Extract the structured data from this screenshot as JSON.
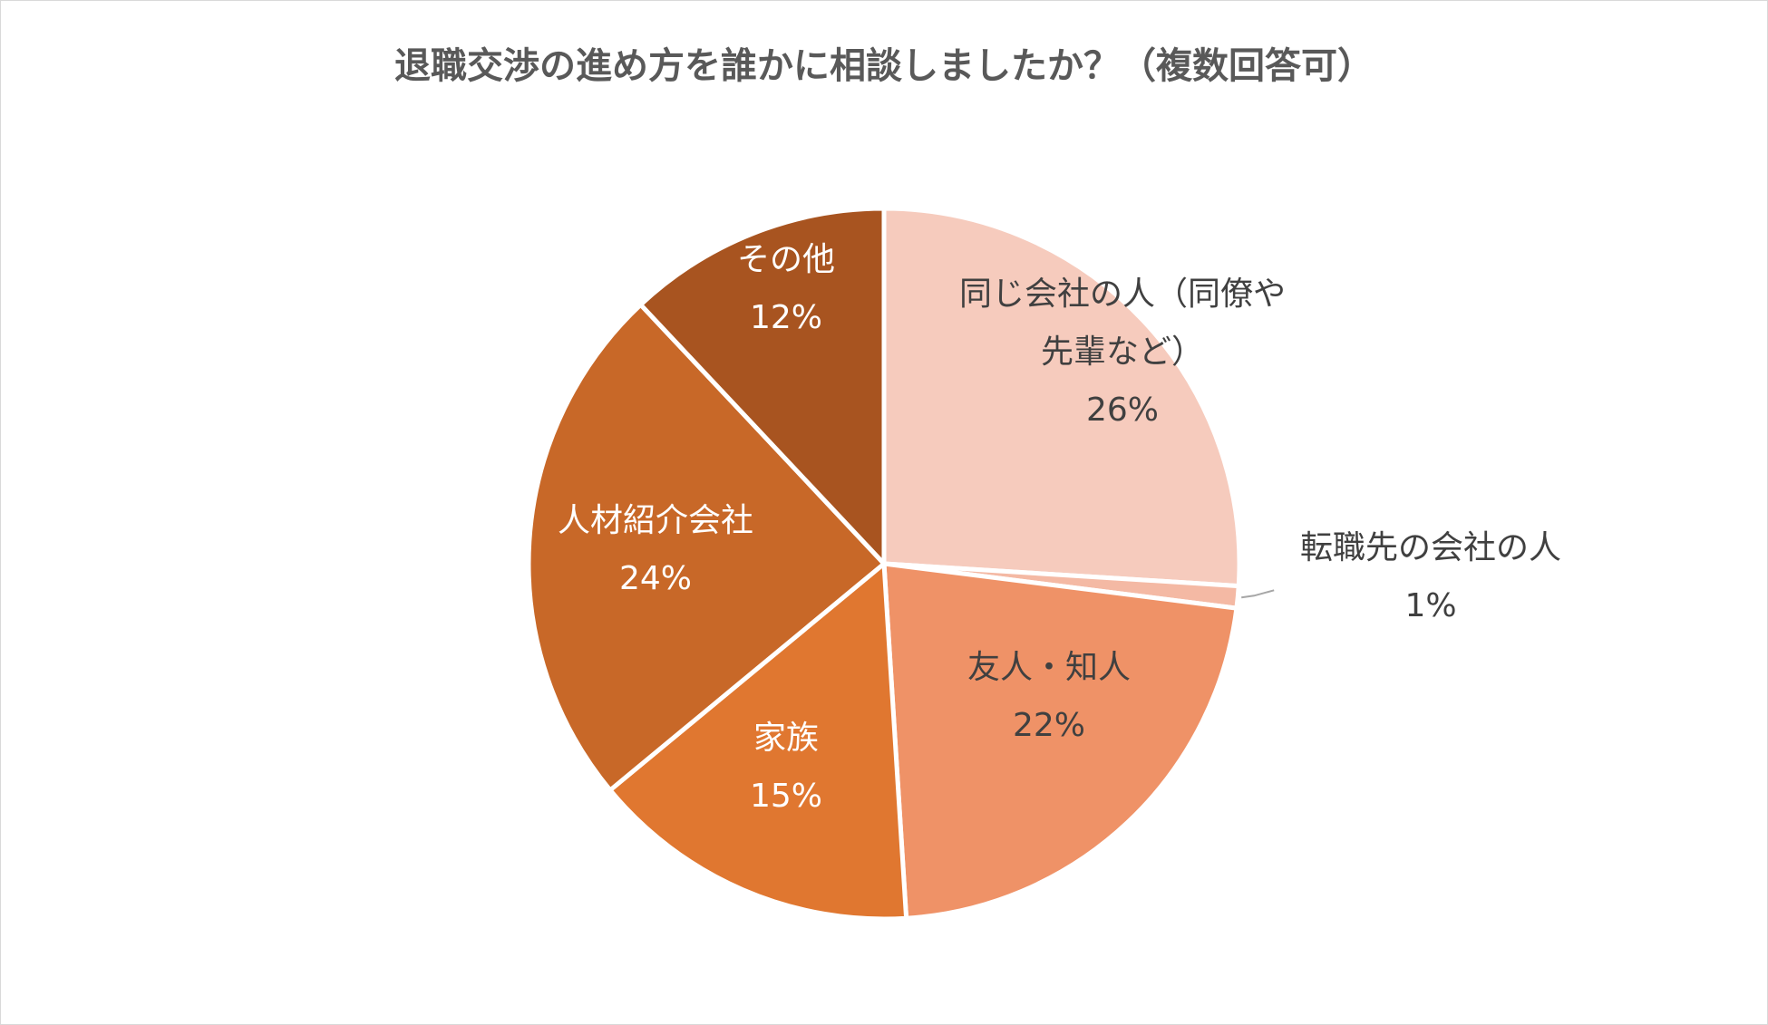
{
  "chart_data": {
    "type": "pie",
    "title": "退職交渉の進め方を誰かに相談しましたか？（複数回答可）",
    "categories": [
      "同じ会社の人（同僚や先輩など）",
      "転職先の会社の人",
      "友人・知人",
      "家族",
      "人材紹介会社",
      "その他"
    ],
    "label_lines": [
      [
        "同じ会社の人（同僚や",
        "先輩など）"
      ],
      [
        "転職先の会社の人"
      ],
      [
        "友人・知人"
      ],
      [
        "家族"
      ],
      [
        "人材紹介会社"
      ],
      [
        "その他"
      ]
    ],
    "values": [
      26,
      1,
      22,
      15,
      24,
      12
    ],
    "value_labels": [
      "26%",
      "1%",
      "22%",
      "15%",
      "24%",
      "12%"
    ],
    "colors": [
      "#f6cbbd",
      "#f4b9a4",
      "#ef9267",
      "#e07730",
      "#c86828",
      "#a85420"
    ],
    "label_colors": [
      "#404040",
      "#404040",
      "#404040",
      "#ffffff",
      "#ffffff",
      "#ffffff"
    ],
    "start_angle": "12 o'clock",
    "direction": "clockwise",
    "legend": "none"
  }
}
